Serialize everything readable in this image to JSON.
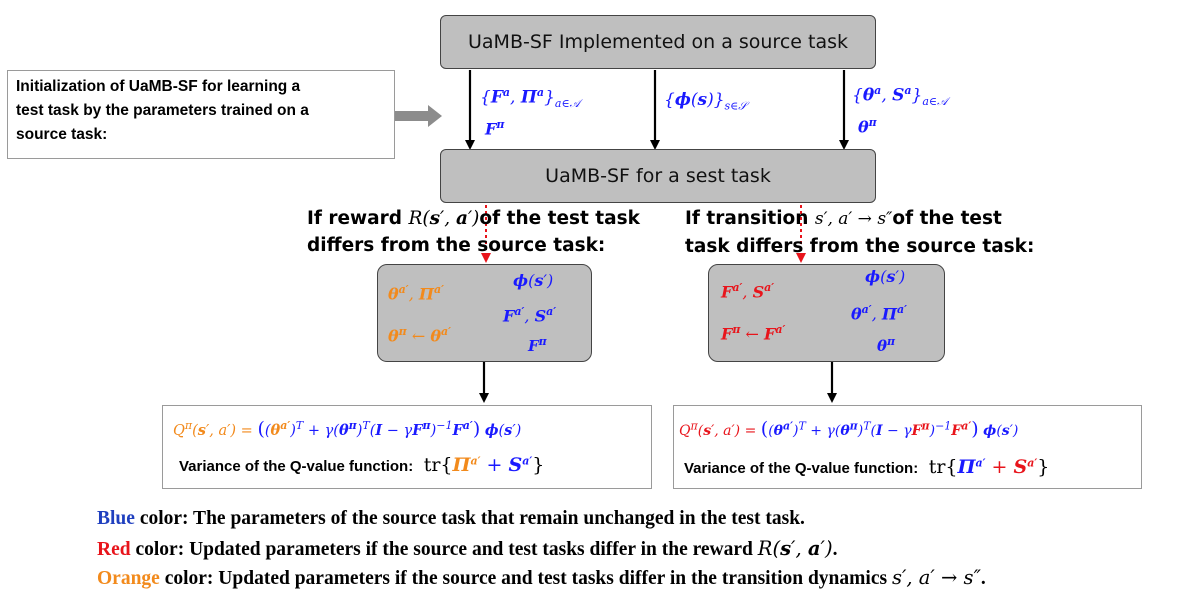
{
  "top_box": {
    "label": "UaMB-SF Implemented on a source task"
  },
  "init_note": {
    "line1": "Initialization of UaMB-SF for learning a",
    "line2": "test task by the parameters trained on a",
    "line3": "source task:"
  },
  "test_box": {
    "label": "UaMB-SF for a sest task"
  },
  "reward_condition": {
    "pre": "If reward",
    "post": "of the test task",
    "line2": "differs from the source task:"
  },
  "transition_condition": {
    "pre": "If transition",
    "post": "of the test",
    "line2": "task differs from the source task:"
  },
  "formula_variance_label": "Variance of the Q-value function:",
  "legend": {
    "blue_word": "Blue",
    "blue_text": " color: The parameters of the source task that remain unchanged in the test task.",
    "red_word": "Red",
    "red_text": " color: Updated parameters if the source and test tasks differ in the reward ",
    "orange_word": "Orange",
    "orange_text": " color: Updated parameters if the source and test tasks differ in the transition dynamics "
  },
  "colors": {
    "blue": "#1a1aff",
    "red": "#e8141b",
    "orange": "#f28a1c",
    "legend_blue": "#1f3fbf",
    "box_gray": "#bfbfbf"
  }
}
